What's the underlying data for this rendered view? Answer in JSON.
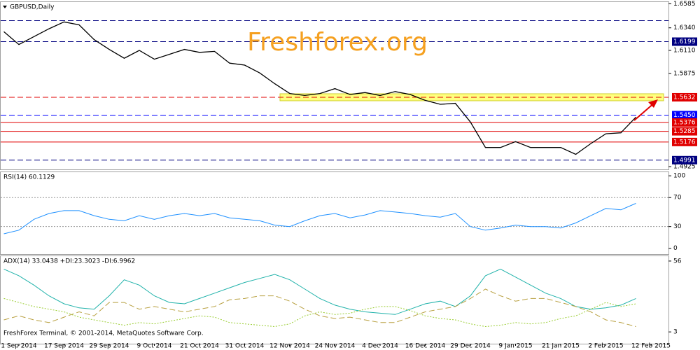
{
  "footer": "FreshForex Terminal, © 2001-2014, MetaQuotes Software Corp.",
  "chart_data": [
    {
      "type": "line",
      "title": "GBPUSD,Daily",
      "watermark": "Freshforex.org",
      "color": "#000000",
      "categories": [
        null,
        "1 Sep 2014",
        null,
        null,
        "17 Sep 2014",
        null,
        null,
        "29 Sep 2014",
        null,
        null,
        "9 Oct 2014",
        null,
        null,
        "21 Oct 2014",
        null,
        null,
        "31 Oct 2014",
        null,
        null,
        "12 Nov 2014",
        null,
        null,
        "24 Nov 2014",
        null,
        null,
        "4 Dec 2014",
        null,
        null,
        "16 Dec 2014",
        null,
        null,
        "29 Dec 2014",
        null,
        null,
        "9 Jan 2015",
        null,
        null,
        "21 Jan 2015",
        null,
        null,
        "2 Feb 2015",
        null,
        null,
        "12 Feb 2015"
      ],
      "values": [
        1.63,
        1.617,
        1.625,
        1.633,
        1.64,
        1.637,
        1.622,
        1.612,
        1.603,
        1.611,
        1.602,
        1.607,
        1.612,
        1.609,
        1.61,
        1.598,
        1.596,
        1.588,
        1.577,
        1.567,
        1.565,
        1.567,
        1.572,
        1.566,
        1.568,
        1.565,
        1.569,
        1.566,
        1.56,
        1.556,
        1.557,
        1.538,
        1.512,
        1.512,
        1.518,
        1.512,
        1.512,
        1.512,
        1.505,
        1.516,
        1.526,
        1.527,
        1.543,
        null
      ],
      "ylim": [
        1.4911,
        1.6595
      ],
      "yticks": [
        1.6585,
        {
          "value": 1.634,
          "label": "1.6340"
        },
        {
          "value": 1.611,
          "label": "1.6110"
        },
        1.5875,
        1.4925
      ],
      "levels": [
        {
          "value": 1.6413,
          "color": "#000080",
          "style": "dashed"
        },
        {
          "value": 1.6199,
          "label": "1.6199",
          "color": "#000080",
          "style": "dashed"
        },
        {
          "value": 1.5632,
          "label": "1.5632",
          "color": "#e00000",
          "style": "dashed"
        },
        {
          "value": 1.545,
          "label": "1.5450",
          "color": "#0000ff",
          "style": "dashed"
        },
        {
          "value": 1.5376,
          "label": "1.5376",
          "color": "#e00000",
          "style": "solid"
        },
        {
          "value": 1.5285,
          "label": "1.5285",
          "color": "#e00000",
          "style": "solid"
        },
        {
          "value": 1.5176,
          "label": "1.5176",
          "color": "#e00000",
          "style": "solid"
        },
        {
          "value": 1.4991,
          "label": "1.4991",
          "color": "#000080",
          "style": "dashed"
        }
      ]
    },
    {
      "type": "line",
      "title": "RSI(14) 60.1129",
      "color": "#1e90ff",
      "values": [
        20,
        25,
        40,
        48,
        52,
        52,
        45,
        40,
        38,
        45,
        40,
        45,
        48,
        45,
        48,
        42,
        40,
        38,
        32,
        30,
        38,
        45,
        48,
        42,
        46,
        52,
        50,
        48,
        45,
        43,
        48,
        30,
        25,
        28,
        32,
        30,
        30,
        28,
        35,
        45,
        55,
        53,
        62,
        null
      ],
      "ylim": [
        -7,
        104
      ],
      "yticks": [
        100,
        70,
        30,
        0
      ],
      "levels": [
        70,
        30
      ]
    },
    {
      "type": "line",
      "title": "ADX(14) 33.0438 +DI:23.3023 -DI:6.9962",
      "series": [
        {
          "color": "#20b2aa",
          "style": "solid",
          "values": [
            50,
            45,
            38,
            30,
            24,
            21,
            20,
            30,
            42,
            38,
            30,
            25,
            24,
            28,
            32,
            36,
            40,
            43,
            46,
            42,
            35,
            28,
            23,
            20,
            18,
            17,
            16,
            20,
            24,
            26,
            22,
            30,
            45,
            50,
            44,
            38,
            32,
            28,
            22,
            20,
            21,
            23,
            28,
            null
          ]
        },
        {
          "color": "#9acd32",
          "style": "dotted",
          "values": [
            28,
            25,
            22,
            20,
            18,
            14,
            12,
            10,
            8,
            10,
            9,
            11,
            13,
            15,
            14,
            10,
            9,
            8,
            7,
            9,
            15,
            18,
            16,
            17,
            20,
            22,
            22,
            19,
            15,
            13,
            12,
            9,
            7,
            8,
            10,
            9,
            10,
            13,
            15,
            20,
            25,
            22,
            24,
            null
          ]
        },
        {
          "color": "#b8a040",
          "style": "dashed",
          "values": [
            12,
            15,
            12,
            10,
            14,
            18,
            15,
            25,
            25,
            20,
            22,
            20,
            18,
            20,
            22,
            27,
            28,
            30,
            30,
            26,
            20,
            15,
            13,
            14,
            12,
            10,
            10,
            14,
            18,
            20,
            22,
            28,
            35,
            30,
            26,
            28,
            28,
            25,
            22,
            18,
            12,
            10,
            7,
            null
          ]
        }
      ],
      "ylim": [
        -5.3,
        59.1
      ],
      "yticks": [
        56,
        3
      ]
    }
  ]
}
